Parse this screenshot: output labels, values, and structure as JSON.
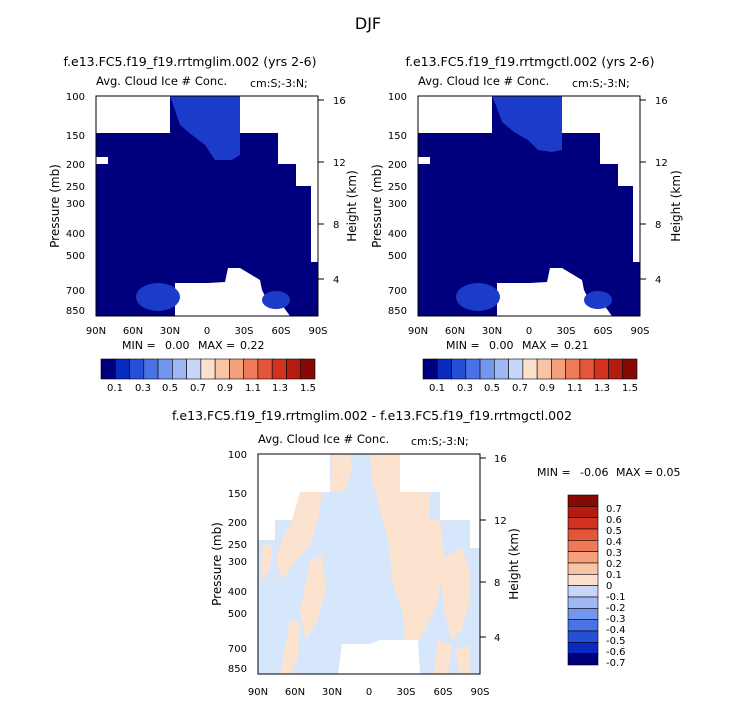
{
  "header": {
    "season": "DJF"
  },
  "panels": [
    {
      "id": "left",
      "title": "f.e13.FC5.f19_f19.rrtmglim.002 (yrs 2-6)",
      "subtitle": "Avg. Cloud Ice # Conc.",
      "region": "cm:S;-3:N;",
      "ylabel": "Pressure (mb)",
      "y2label": "Height (km)",
      "min_label": "MIN =",
      "min_value": "0.00",
      "max_label": "MAX =",
      "max_value": "0.22"
    },
    {
      "id": "right",
      "title": "f.e13.FC5.f19_f19.rrtmgctl.002 (yrs 2-6)",
      "subtitle": "Avg. Cloud Ice # Conc.",
      "region": "cm:S;-3:N;",
      "ylabel": "Pressure (mb)",
      "y2label": "Height (km)",
      "min_label": "MIN =",
      "min_value": "0.00",
      "max_label": "MAX =",
      "max_value": "0.21"
    },
    {
      "id": "diff",
      "title": "f.e13.FC5.f19_f19.rrtmglim.002 - f.e13.FC5.f19_f19.rrtmgctl.002",
      "subtitle": "Avg. Cloud Ice # Conc.",
      "region": "cm:S;-3:N;",
      "ylabel": "Pressure (mb)",
      "y2label": "Height (km)",
      "min_label": "MIN =",
      "min_value": "-0.06",
      "max_label": "MAX =",
      "max_value": "0.05"
    }
  ],
  "chart_data": [
    {
      "type": "heatmap",
      "title": "f.e13.FC5.f19_f19.rrtmglim.002 (yrs 2-6)",
      "x_ticks": [
        "90N",
        "60N",
        "30N",
        "0",
        "30S",
        "60S",
        "90S"
      ],
      "y_ticks": [
        "100",
        "150",
        "200",
        "250",
        "300",
        "400",
        "500",
        "700",
        "850"
      ],
      "y2_ticks": [
        "16",
        "12",
        "8",
        "4"
      ],
      "xlabel": "",
      "ylabel": "Pressure (mb)",
      "y2label": "Height (km)",
      "min": 0.0,
      "max": 0.22,
      "colorbar_labels": [
        "0.1",
        "0.3",
        "0.5",
        "0.7",
        "0.9",
        "1.1",
        "1.3",
        "1.5"
      ]
    },
    {
      "type": "heatmap",
      "title": "f.e13.FC5.f19_f19.rrtmgctl.002 (yrs 2-6)",
      "x_ticks": [
        "90N",
        "60N",
        "30N",
        "0",
        "30S",
        "60S",
        "90S"
      ],
      "y_ticks": [
        "100",
        "150",
        "200",
        "250",
        "300",
        "400",
        "500",
        "700",
        "850"
      ],
      "y2_ticks": [
        "16",
        "12",
        "8",
        "4"
      ],
      "xlabel": "",
      "ylabel": "Pressure (mb)",
      "y2label": "Height (km)",
      "min": 0.0,
      "max": 0.21,
      "colorbar_labels": [
        "0.1",
        "0.3",
        "0.5",
        "0.7",
        "0.9",
        "1.1",
        "1.3",
        "1.5"
      ]
    },
    {
      "type": "heatmap",
      "title": "f.e13.FC5.f19_f19.rrtmglim.002 - f.e13.FC5.f19_f19.rrtmgctl.002",
      "x_ticks": [
        "90N",
        "60N",
        "30N",
        "0",
        "30S",
        "60S",
        "90S"
      ],
      "y_ticks": [
        "100",
        "150",
        "200",
        "250",
        "300",
        "400",
        "500",
        "700",
        "850"
      ],
      "y2_ticks": [
        "16",
        "12",
        "8",
        "4"
      ],
      "xlabel": "",
      "ylabel": "Pressure (mb)",
      "y2label": "Height (km)",
      "min": -0.06,
      "max": 0.05,
      "colorbar_labels": [
        "0.7",
        "0.6",
        "0.5",
        "0.4",
        "0.3",
        "0.2",
        "0.1",
        "0",
        "-0.1",
        "-0.2",
        "-0.3",
        "-0.4",
        "-0.5",
        "-0.6",
        "-0.7"
      ]
    }
  ],
  "colors": {
    "seq": [
      "#00007f",
      "#0a2bbf",
      "#2450d6",
      "#4a72e6",
      "#7396ee",
      "#9fb8f3",
      "#c8d7f7",
      "#fbe0cc",
      "#f8c4a4",
      "#f4a07c",
      "#ee7a58",
      "#e5553a",
      "#d2321f",
      "#b41c10",
      "#850a06"
    ],
    "dark_blue": "#00007f",
    "mid_blue": "#1a3cc8",
    "diff_pos": "#fbe3d0",
    "diff_neg": "#d6e6fb",
    "white": "#ffffff"
  }
}
